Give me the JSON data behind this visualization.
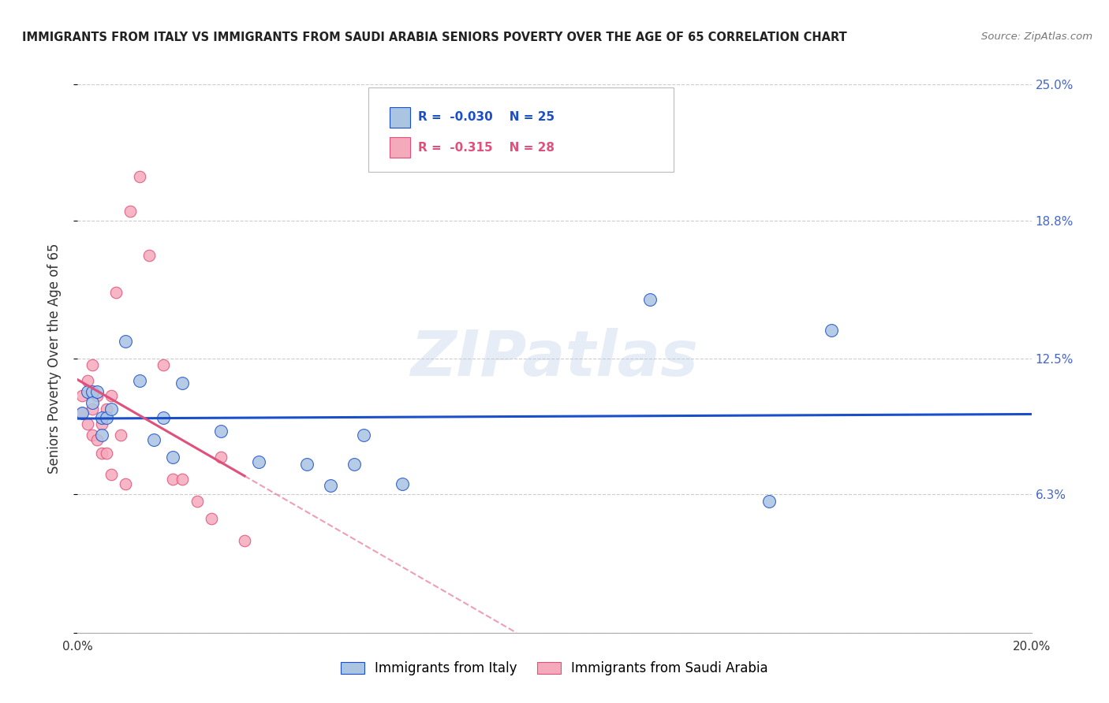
{
  "title": "IMMIGRANTS FROM ITALY VS IMMIGRANTS FROM SAUDI ARABIA SENIORS POVERTY OVER THE AGE OF 65 CORRELATION CHART",
  "source": "Source: ZipAtlas.com",
  "ylabel": "Seniors Poverty Over the Age of 65",
  "xlabel_italy": "Immigrants from Italy",
  "xlabel_saudi": "Immigrants from Saudi Arabia",
  "xmin": 0.0,
  "xmax": 0.2,
  "ymin": 0.0,
  "ymax": 0.25,
  "yticks": [
    0.0,
    0.063,
    0.125,
    0.188,
    0.25
  ],
  "ytick_labels_right": [
    "",
    "6.3%",
    "12.5%",
    "18.8%",
    "25.0%"
  ],
  "xticks": [
    0.0,
    0.05,
    0.1,
    0.15,
    0.2
  ],
  "xtick_labels": [
    "0.0%",
    "",
    "",
    "",
    "20.0%"
  ],
  "R_italy": -0.03,
  "N_italy": 25,
  "R_saudi": -0.315,
  "N_saudi": 28,
  "color_italy": "#aac4e2",
  "color_saudi": "#f5aabb",
  "line_color_italy": "#1a4fcc",
  "line_color_saudi": "#e0507a",
  "watermark_text": "ZIPatlas",
  "italy_x": [
    0.001,
    0.002,
    0.003,
    0.003,
    0.004,
    0.005,
    0.005,
    0.006,
    0.007,
    0.01,
    0.013,
    0.016,
    0.018,
    0.02,
    0.022,
    0.03,
    0.038,
    0.048,
    0.053,
    0.058,
    0.06,
    0.068,
    0.12,
    0.145,
    0.158
  ],
  "italy_y": [
    0.1,
    0.11,
    0.11,
    0.105,
    0.11,
    0.098,
    0.09,
    0.098,
    0.102,
    0.133,
    0.115,
    0.088,
    0.098,
    0.08,
    0.114,
    0.092,
    0.078,
    0.077,
    0.067,
    0.077,
    0.09,
    0.068,
    0.152,
    0.06,
    0.138
  ],
  "saudi_x": [
    0.001,
    0.001,
    0.002,
    0.002,
    0.003,
    0.003,
    0.003,
    0.004,
    0.004,
    0.005,
    0.005,
    0.006,
    0.006,
    0.007,
    0.007,
    0.008,
    0.009,
    0.01,
    0.011,
    0.013,
    0.015,
    0.018,
    0.02,
    0.022,
    0.025,
    0.028,
    0.03,
    0.035
  ],
  "saudi_y": [
    0.108,
    0.1,
    0.115,
    0.095,
    0.122,
    0.102,
    0.09,
    0.108,
    0.088,
    0.095,
    0.082,
    0.102,
    0.082,
    0.108,
    0.072,
    0.155,
    0.09,
    0.068,
    0.192,
    0.208,
    0.172,
    0.122,
    0.07,
    0.07,
    0.06,
    0.052,
    0.08,
    0.042
  ],
  "grid_color": "#cccccc",
  "background_color": "#ffffff",
  "title_color": "#222222",
  "source_color": "#777777",
  "right_tick_color": "#4466cc",
  "ylabel_color": "#333333"
}
